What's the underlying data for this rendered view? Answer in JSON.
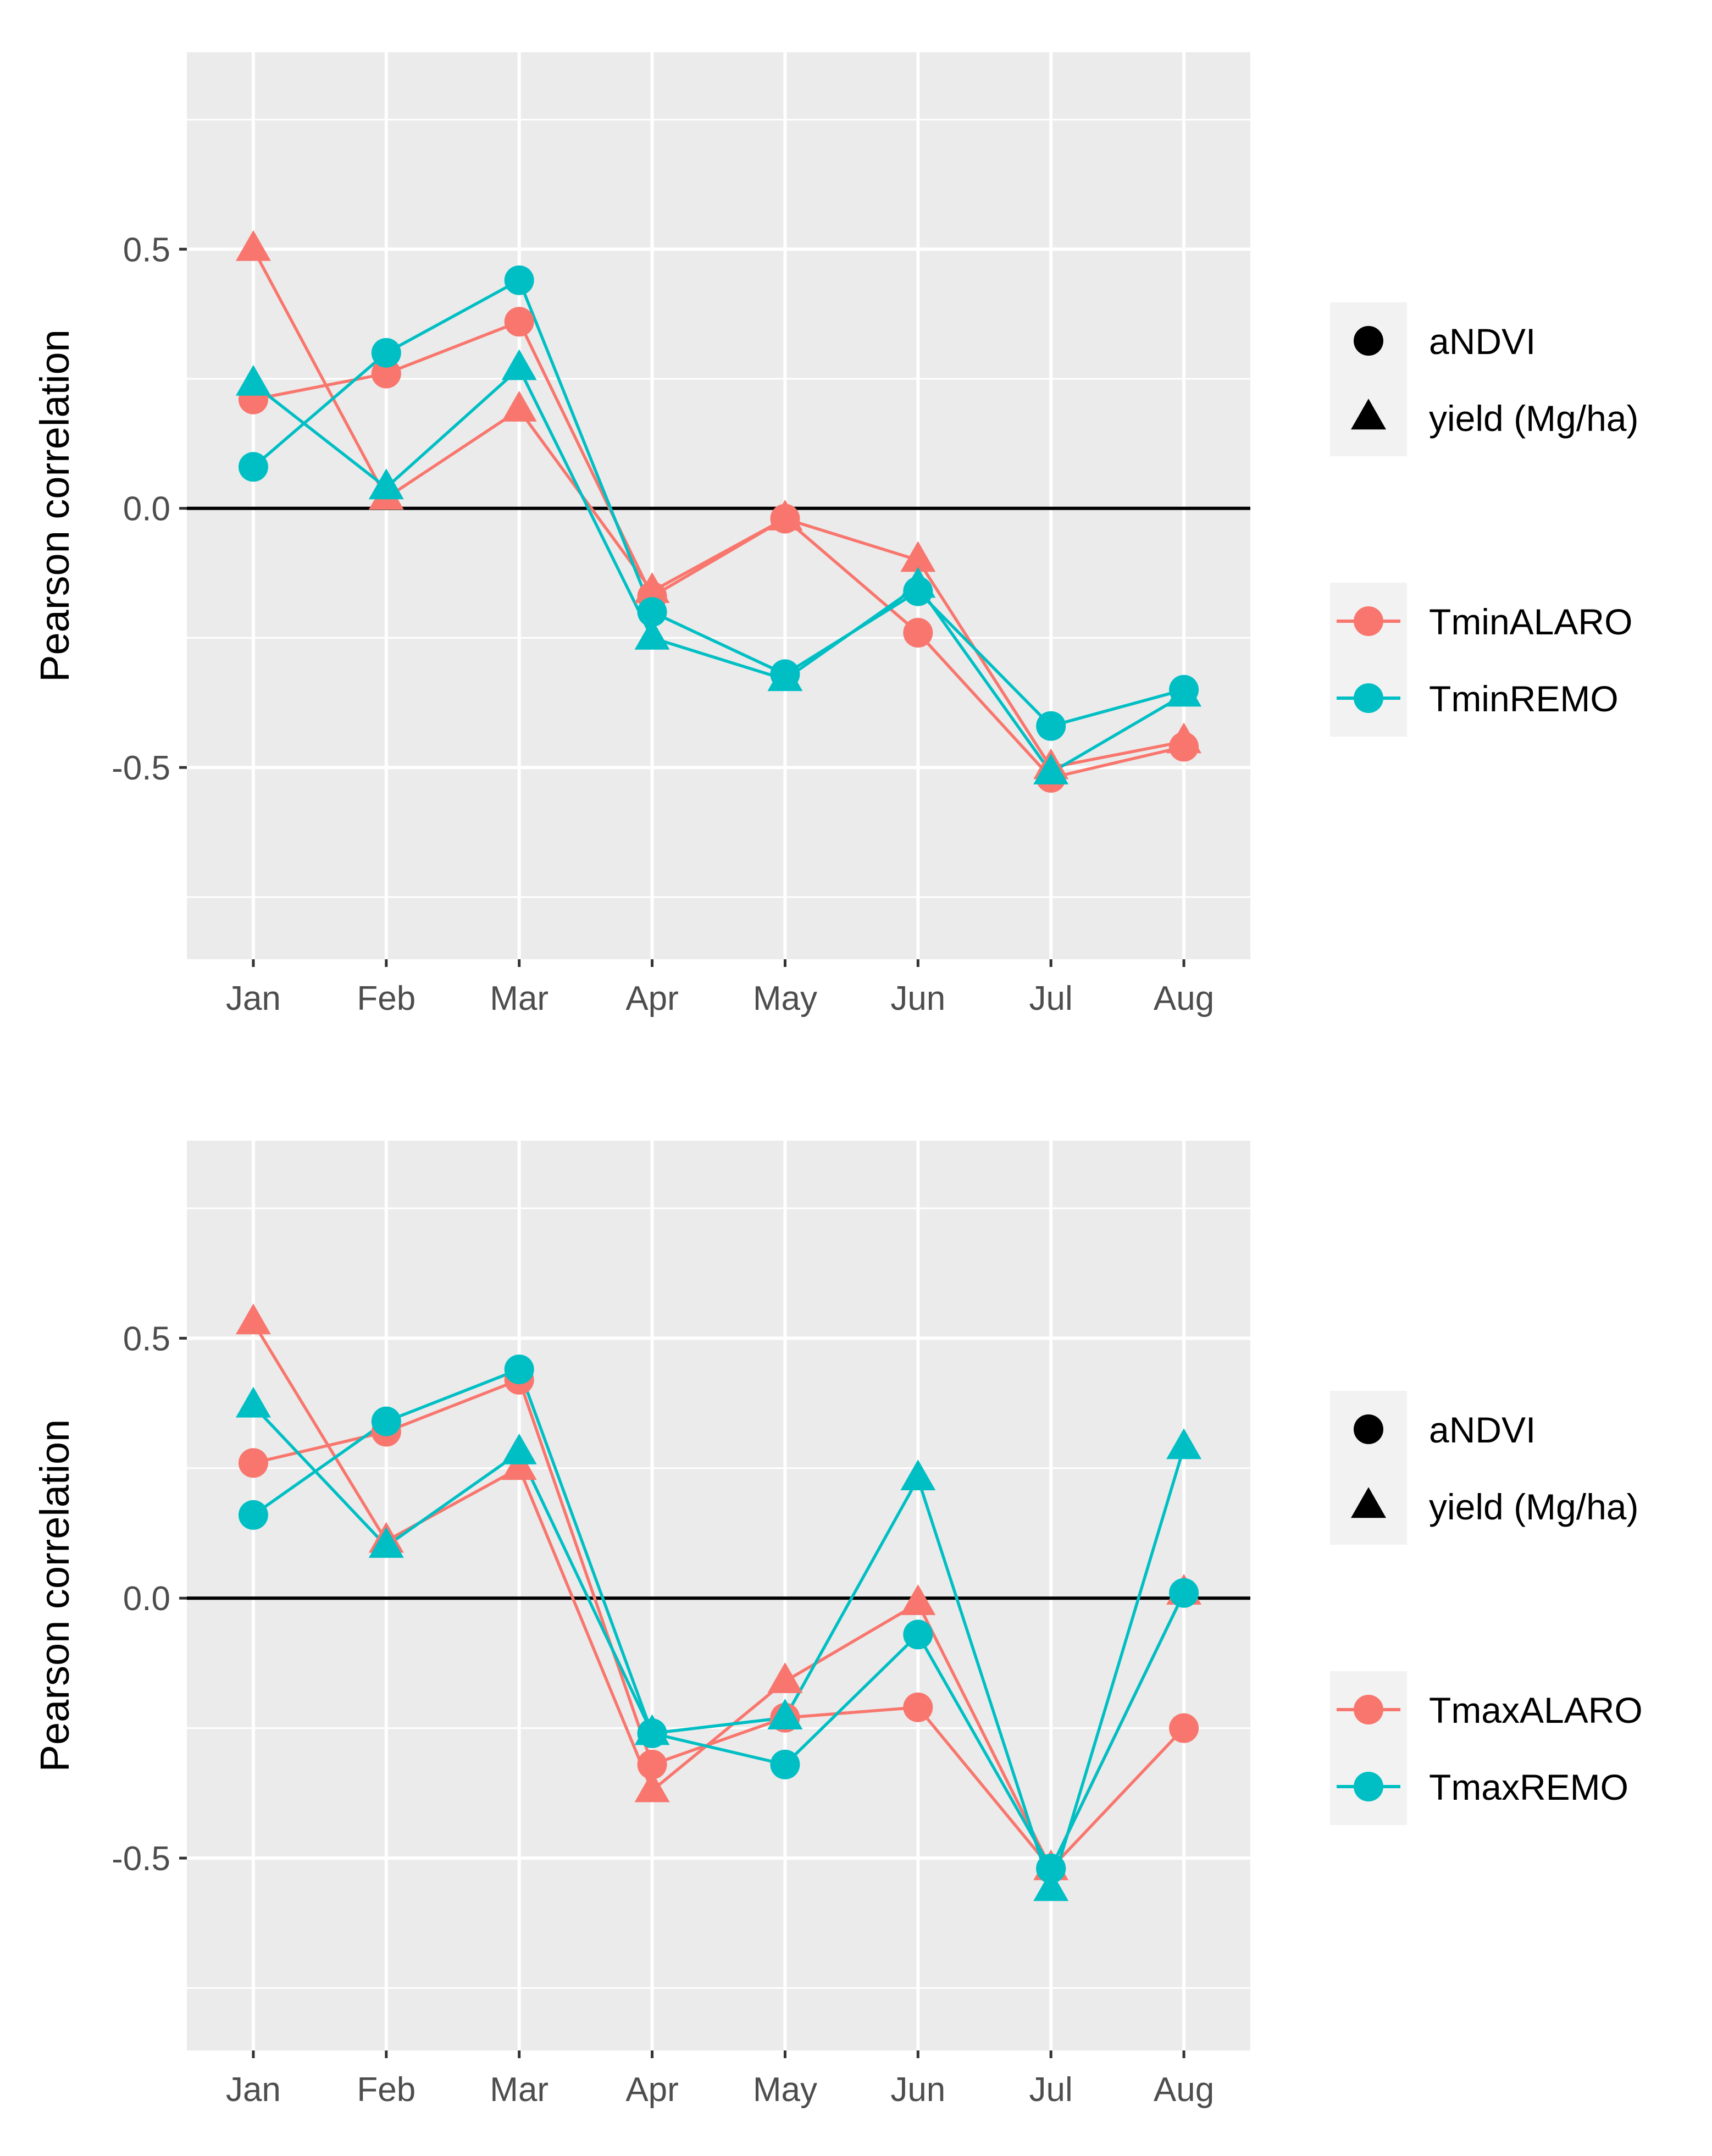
{
  "chart_data": [
    {
      "type": "line",
      "title": "",
      "xlabel": "",
      "ylabel": "Pearson correlation",
      "categories": [
        "Jan",
        "Feb",
        "Mar",
        "Apr",
        "May",
        "Jun",
        "Jul",
        "Aug"
      ],
      "ylim": [
        -0.87,
        0.88
      ],
      "yticks": [
        -0.5,
        0.0,
        0.5
      ],
      "ytick_labels": [
        "-0.5",
        "0.0",
        "0.5"
      ],
      "hline": 0,
      "legend_shape": {
        "items": [
          {
            "label": "aNDVI",
            "shape": "circle"
          },
          {
            "label": "yield (Mg/ha)",
            "shape": "triangle"
          }
        ]
      },
      "legend_color": {
        "items": [
          {
            "label": "TminALARO",
            "color": "#F8766D"
          },
          {
            "label": "TminREMO",
            "color": "#00BFC4"
          }
        ]
      },
      "series": [
        {
          "name": "TminALARO aNDVI",
          "color": "#F8766D",
          "shape": "circle",
          "values": [
            0.21,
            0.26,
            0.36,
            -0.17,
            -0.02,
            -0.24,
            -0.52,
            -0.46
          ]
        },
        {
          "name": "TminALARO yield (Mg/ha)",
          "color": "#F8766D",
          "shape": "triangle",
          "values": [
            0.5,
            0.02,
            0.19,
            -0.16,
            -0.02,
            -0.1,
            -0.5,
            -0.45
          ]
        },
        {
          "name": "TminREMO aNDVI",
          "color": "#00BFC4",
          "shape": "circle",
          "values": [
            0.08,
            0.3,
            0.44,
            -0.2,
            -0.32,
            -0.16,
            -0.42,
            -0.35
          ]
        },
        {
          "name": "TminREMO yield (Mg/ha)",
          "color": "#00BFC4",
          "shape": "triangle",
          "values": [
            0.24,
            0.04,
            0.27,
            -0.25,
            -0.33,
            -0.15,
            -0.51,
            -0.36
          ]
        }
      ]
    },
    {
      "type": "line",
      "title": "",
      "xlabel": "",
      "ylabel": "Pearson correlation",
      "categories": [
        "Jan",
        "Feb",
        "Mar",
        "Apr",
        "May",
        "Jun",
        "Jul",
        "Aug"
      ],
      "ylim": [
        -0.87,
        0.88
      ],
      "yticks": [
        -0.5,
        0.0,
        0.5
      ],
      "ytick_labels": [
        "-0.5",
        "0.0",
        "0.5"
      ],
      "hline": 0,
      "legend_shape": {
        "items": [
          {
            "label": "aNDVI",
            "shape": "circle"
          },
          {
            "label": "yield (Mg/ha)",
            "shape": "triangle"
          }
        ]
      },
      "legend_color": {
        "items": [
          {
            "label": "TmaxALARO",
            "color": "#F8766D"
          },
          {
            "label": "TmaxREMO",
            "color": "#00BFC4"
          }
        ]
      },
      "series": [
        {
          "name": "TmaxALARO aNDVI",
          "color": "#F8766D",
          "shape": "circle",
          "values": [
            0.26,
            0.32,
            0.42,
            -0.32,
            -0.23,
            -0.21,
            -0.52,
            -0.25
          ]
        },
        {
          "name": "TmaxALARO yield (Mg/ha)",
          "color": "#F8766D",
          "shape": "triangle",
          "values": [
            0.53,
            0.11,
            0.25,
            -0.37,
            -0.16,
            -0.01,
            -0.52,
            0.01
          ]
        },
        {
          "name": "TmaxREMO aNDVI",
          "color": "#00BFC4",
          "shape": "circle",
          "values": [
            0.16,
            0.34,
            0.44,
            -0.26,
            -0.32,
            -0.07,
            -0.52,
            0.01
          ]
        },
        {
          "name": "TmaxREMO yield (Mg/ha)",
          "color": "#00BFC4",
          "shape": "triangle",
          "values": [
            0.37,
            0.1,
            0.28,
            -0.26,
            -0.23,
            0.23,
            -0.56,
            0.29
          ]
        }
      ]
    }
  ]
}
